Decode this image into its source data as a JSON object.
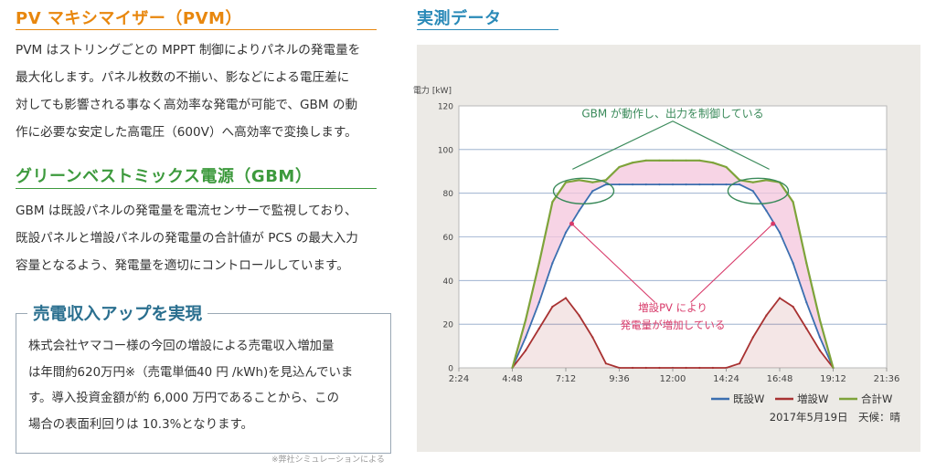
{
  "left": {
    "pvm": {
      "title": "PV マキシマイザー（PVM）",
      "lines": [
        "PVM はストリングごとの MPPT 制御によりパネルの発電量を",
        "最大化します。パネル枚数の不揃い、影などによる電圧差に",
        "対しても影響される事なく高効率な発電が可能で、GBM の動",
        "作に必要な安定した高電圧（600V）へ高効率で変換します。"
      ]
    },
    "gbm": {
      "title": "グリーンベストミックス電源（GBM）",
      "lines": [
        "GBM は既設パネルの発電量を電流センサーで監視しており、",
        "既設パネルと増設パネルの発電量の合計値が PCS の最大入力",
        "容量となるよう、発電量を適切にコントロールしています。"
      ]
    },
    "revenue": {
      "title": "売電収入アップを実現",
      "lines": [
        "株式会社ヤマコー様の今回の増設による売電収入増加量",
        "は年間約620万円※（売電単価40 円 /kWh)を見込んでいま",
        "す。導入投資金額が約 6,000 万円であることから、この",
        "場合の表面利回りは 10.3%となります。"
      ],
      "note": "※弊社シミュレーションによる"
    }
  },
  "right": {
    "title": "実測データ",
    "date": "2017年5月19日　天候：晴",
    "ann_top": "GBM が動作し、出力を制御している",
    "ann_mid1": "増設PV により",
    "ann_mid2": "発電量が増加している"
  },
  "colors": {
    "orange": "#e8870e",
    "green": "#3d9a3d",
    "teal": "#2a8ab8",
    "kisetsu": "#3b6fb0",
    "zosetsu": "#a83232",
    "gokei": "#7ea33a",
    "pink": "#f4c6dc",
    "annot_green": "#3a8a5a",
    "annot_red": "#d83a6a"
  },
  "chart_data": {
    "type": "line",
    "ylabel": "電力 [kW]",
    "ylim": [
      0,
      120
    ],
    "yticks": [
      "0",
      "20",
      "40",
      "60",
      "80",
      "100",
      "120"
    ],
    "xlim_hours": [
      2.4,
      21.6
    ],
    "xtick_labels": [
      "2:24",
      "4:48",
      "7:12",
      "9:36",
      "12:00",
      "14:24",
      "16:48",
      "19:12",
      "21:36"
    ],
    "x": [
      "4:48",
      "5:24",
      "6:00",
      "6:36",
      "7:12",
      "7:48",
      "8:24",
      "9:00",
      "9:36",
      "10:12",
      "10:48",
      "11:24",
      "12:00",
      "12:36",
      "13:12",
      "13:48",
      "14:24",
      "15:00",
      "15:36",
      "16:12",
      "16:48",
      "17:24",
      "18:00",
      "18:36",
      "19:12"
    ],
    "series": [
      {
        "name": "既設W",
        "color": "#3b6fb0",
        "values": [
          0,
          14,
          30,
          48,
          62,
          72,
          81,
          84,
          84,
          84,
          84,
          84,
          84,
          84,
          84,
          84,
          84,
          84,
          81,
          72,
          62,
          48,
          30,
          14,
          0
        ]
      },
      {
        "name": "増設W",
        "color": "#a83232",
        "values": [
          0,
          8,
          18,
          28,
          32,
          24,
          14,
          2,
          0,
          0,
          0,
          0,
          0,
          0,
          0,
          0,
          0,
          2,
          14,
          24,
          32,
          28,
          18,
          8,
          0
        ]
      },
      {
        "name": "合計W",
        "color": "#7ea33a",
        "values": [
          0,
          22,
          48,
          76,
          85,
          86,
          85,
          86,
          92,
          94,
          95,
          95,
          95,
          95,
          95,
          94,
          92,
          86,
          85,
          86,
          85,
          76,
          48,
          22,
          0
        ]
      }
    ],
    "legend": "bottom-right",
    "grid": true
  }
}
